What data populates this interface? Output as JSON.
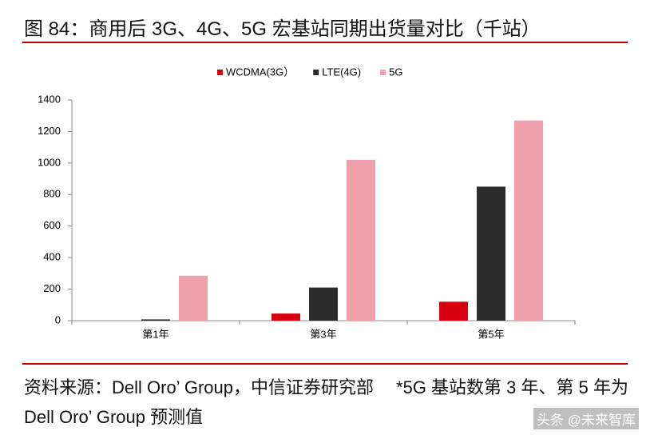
{
  "chart_data": {
    "type": "bar",
    "title": "图 84：商用后 3G、4G、5G 宏基站同期出货量对比（千站）",
    "categories": [
      "第1年",
      "第3年",
      "第5年"
    ],
    "series": [
      {
        "name": "WCDMA(3G）",
        "color": "#d7000f",
        "values": [
          0,
          45,
          120
        ]
      },
      {
        "name": "LTE(4G)",
        "color": "#2b2b2b",
        "values": [
          8,
          210,
          850
        ]
      },
      {
        "name": "5G",
        "color": "#f0a0aa",
        "values": [
          285,
          1020,
          1270
        ]
      }
    ],
    "ylim": [
      0,
      1400
    ],
    "yticks": [
      0,
      200,
      400,
      600,
      800,
      1000,
      1200,
      1400
    ],
    "grid": false,
    "legend": "top"
  },
  "source": "资料来源：Dell Oro’ Group，中信证券研究部",
  "note": "*5G 基站数第 3 年、第 5 年为 Dell Oro’ Group 预测值",
  "watermark": "头条 @未来智库"
}
